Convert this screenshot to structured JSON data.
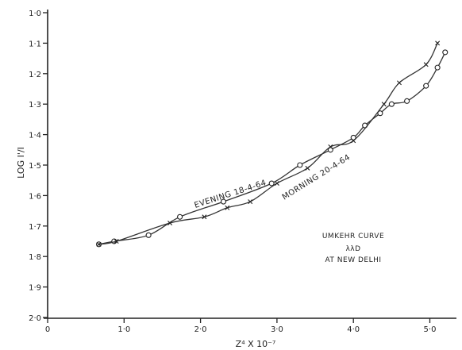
{
  "chart_data": {
    "type": "line",
    "title": "",
    "xlabel": "Z⁴ X 10⁻⁷",
    "ylabel": "LOG I'/I",
    "xlim": [
      0,
      5.3
    ],
    "ylim": [
      2.0,
      1.0
    ],
    "y_inverted": true,
    "grid": false,
    "x_ticks": [
      {
        "value": 0,
        "label": "0"
      },
      {
        "value": 1,
        "label": "1·0"
      },
      {
        "value": 2,
        "label": "2·0"
      },
      {
        "value": 3,
        "label": "3·0"
      },
      {
        "value": 4,
        "label": "4·0"
      },
      {
        "value": 5,
        "label": "5·0"
      }
    ],
    "y_ticks": [
      {
        "value": 1.0,
        "label": "1·0"
      },
      {
        "value": 1.1,
        "label": "1·1"
      },
      {
        "value": 1.2,
        "label": "1·2"
      },
      {
        "value": 1.3,
        "label": "1·3"
      },
      {
        "value": 1.4,
        "label": "1·4"
      },
      {
        "value": 1.5,
        "label": "1·5"
      },
      {
        "value": 1.6,
        "label": "1·6"
      },
      {
        "value": 1.7,
        "label": "1·7"
      },
      {
        "value": 1.8,
        "label": "1·8"
      },
      {
        "value": 1.9,
        "label": "1·9"
      },
      {
        "value": 2.0,
        "label": "2·0"
      }
    ],
    "series": [
      {
        "name": "EVENING 18-4-64",
        "marker": "circle",
        "points": [
          [
            0.67,
            1.76
          ],
          [
            0.87,
            1.75
          ],
          [
            1.32,
            1.73
          ],
          [
            1.73,
            1.67
          ],
          [
            2.3,
            1.62
          ],
          [
            2.93,
            1.56
          ],
          [
            3.3,
            1.5
          ],
          [
            3.7,
            1.45
          ],
          [
            4.0,
            1.41
          ],
          [
            4.15,
            1.37
          ],
          [
            4.35,
            1.33
          ],
          [
            4.5,
            1.3
          ],
          [
            4.7,
            1.29
          ],
          [
            4.95,
            1.24
          ],
          [
            5.1,
            1.18
          ],
          [
            5.2,
            1.13
          ]
        ]
      },
      {
        "name": "MORNING 20-4-64",
        "marker": "cross",
        "points": [
          [
            0.67,
            1.76
          ],
          [
            0.9,
            1.75
          ],
          [
            1.6,
            1.69
          ],
          [
            2.05,
            1.67
          ],
          [
            2.35,
            1.64
          ],
          [
            2.65,
            1.62
          ],
          [
            3.0,
            1.56
          ],
          [
            3.4,
            1.51
          ],
          [
            3.7,
            1.44
          ],
          [
            4.0,
            1.42
          ],
          [
            4.4,
            1.3
          ],
          [
            4.6,
            1.23
          ],
          [
            4.95,
            1.17
          ],
          [
            5.1,
            1.1
          ]
        ]
      }
    ],
    "annotation": [
      "UMKEHR CURVE",
      "λλD",
      "AT NEW DELHI"
    ]
  }
}
